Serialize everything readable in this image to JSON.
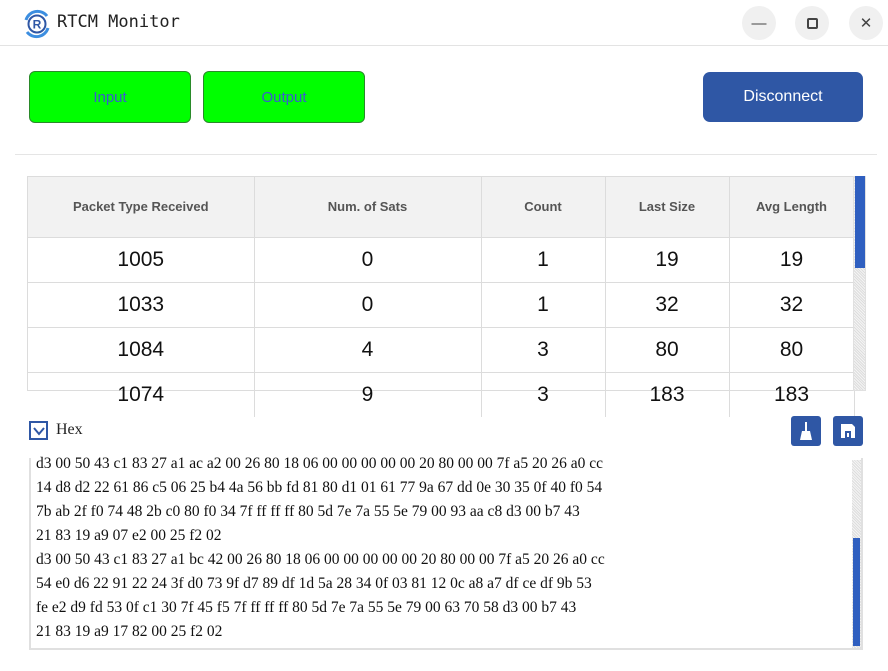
{
  "window": {
    "title": "RTCM Monitor",
    "logo_letter": "R"
  },
  "toolbar": {
    "input_label": "Input",
    "output_label": "Output",
    "disconnect_label": "Disconnect",
    "active_color": "#00ff00",
    "accent_color": "#2f57a5"
  },
  "table": {
    "headers": [
      "Packet Type Received",
      "Num. of Sats",
      "Count",
      "Last Size",
      "Avg Length"
    ],
    "rows": [
      [
        "1005",
        "0",
        "1",
        "19",
        "19"
      ],
      [
        "1033",
        "0",
        "1",
        "32",
        "32"
      ],
      [
        "1084",
        "4",
        "3",
        "80",
        "80"
      ],
      [
        "1074",
        "9",
        "3",
        "183",
        "183"
      ]
    ]
  },
  "hex": {
    "label": "Hex",
    "checked": true,
    "clear_icon": "broom-icon",
    "save_icon": "floppy-save-icon",
    "lines": [
      "d3 00 50 43 c1 83 27 a1 ac a2 00 26 80 18 06 00 00 00 00 00 20 80 00 00 7f a5 20 26 a0 cc",
      "14 d8 d2 22 61 86 c5 06 25 b4 4a 56 bb fd 81 80 d1 01 61 77 9a 67 dd 0e 30 35 0f 40 f0 54",
      "7b ab 2f f0 74 48 2b c0 80 f0 34 7f ff ff ff 80 5d 7e 7a 55 5e 79 00 93 aa c8 d3 00 b7 43",
      "21 83 19 a9 07 e2 00 25 f2 02",
      "d3 00 50 43 c1 83 27 a1 bc 42 00 26 80 18 06 00 00 00 00 00 20 80 00 00 7f a5 20 26 a0 cc",
      "54 e0 d6 22 91 22 24 3f d0 73 9f d7 89 df 1d 5a 28 34 0f 03 81 12 0c a8 a7 df ce df 9b 53",
      "fe e2 d9 fd 53 0f c1 30 7f 45 f5 7f ff ff ff 80 5d 7e 7a 55 5e 79 00 63 70 58 d3 00 b7 43",
      "21 83 19 a9 17 82 00 25 f2 02"
    ]
  }
}
